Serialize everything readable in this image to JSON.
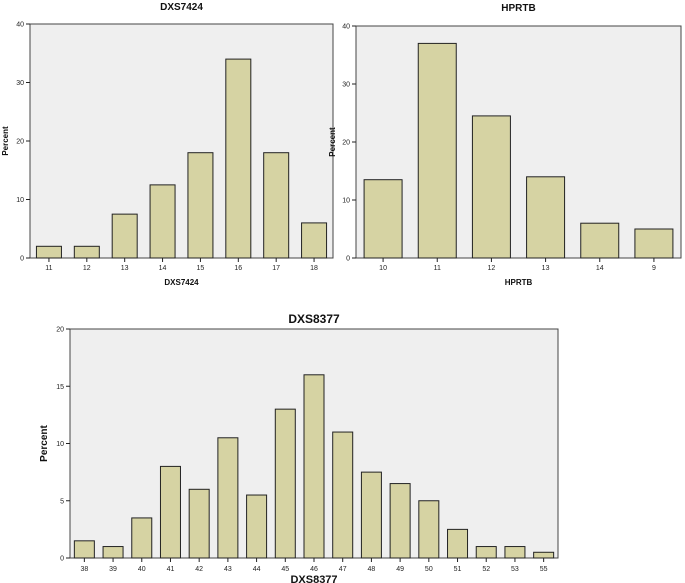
{
  "chart_data": [
    {
      "id": "dxs7424",
      "type": "bar",
      "title": "DXS7424",
      "xlabel": "DXS7424",
      "ylabel": "Percent",
      "ylim": [
        0,
        40
      ],
      "yticks": [
        0,
        10,
        20,
        30,
        40
      ],
      "categories": [
        "11",
        "12",
        "13",
        "14",
        "15",
        "16",
        "17",
        "18"
      ],
      "values": [
        2,
        2,
        7.5,
        12.5,
        18,
        34,
        18,
        6
      ],
      "grid": false
    },
    {
      "id": "hprtb",
      "type": "bar",
      "title": "HPRTB",
      "xlabel": "HPRTB",
      "ylabel": "Percent",
      "ylim": [
        0,
        40
      ],
      "yticks": [
        0,
        10,
        20,
        30,
        40
      ],
      "categories": [
        "10",
        "11",
        "12",
        "13",
        "14",
        "9"
      ],
      "values": [
        13.5,
        37,
        24.5,
        14,
        6,
        5
      ],
      "grid": false
    },
    {
      "id": "dxs8377",
      "type": "bar",
      "title": "DXS8377",
      "xlabel": "DXS8377",
      "ylabel": "Percent",
      "ylim": [
        0,
        20
      ],
      "yticks": [
        0,
        5,
        10,
        15,
        20
      ],
      "categories": [
        "38",
        "39",
        "40",
        "41",
        "42",
        "43",
        "44",
        "45",
        "46",
        "47",
        "48",
        "49",
        "50",
        "51",
        "52",
        "53",
        "55"
      ],
      "values": [
        1.5,
        1,
        3.5,
        8,
        6,
        10.5,
        5.5,
        13,
        16,
        11,
        7.5,
        6.5,
        5,
        2.5,
        1,
        1,
        0.5
      ],
      "grid": false
    }
  ],
  "colors": {
    "bar_fill": "#d6d3a3",
    "bar_stroke": "#222222",
    "plot_background": "#efefef"
  }
}
